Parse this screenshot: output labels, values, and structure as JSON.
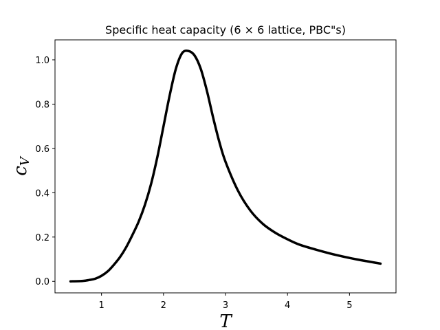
{
  "chart_data": {
    "type": "line",
    "title": "Specific heat capacity (6 × 6 lattice, PBC\"s)",
    "xlabel": "T",
    "ylabel": "c",
    "ylabel_subscript": "V",
    "xlim": [
      0.25,
      5.75
    ],
    "ylim": [
      -0.052,
      1.09
    ],
    "xticks": [
      1,
      2,
      3,
      4,
      5
    ],
    "yticks": [
      0.0,
      0.2,
      0.4,
      0.6,
      0.8,
      1.0
    ],
    "grid": false,
    "legend": "none",
    "series": [
      {
        "color": "#000000",
        "x": [
          0.5,
          0.7,
          0.8,
          0.9,
          1.0,
          1.1,
          1.2,
          1.3,
          1.4,
          1.5,
          1.6,
          1.7,
          1.8,
          1.9,
          2.0,
          2.1,
          2.2,
          2.3,
          2.4,
          2.5,
          2.6,
          2.7,
          2.8,
          2.9,
          3.0,
          3.2,
          3.4,
          3.6,
          3.8,
          4.0,
          4.2,
          4.5,
          4.8,
          5.1,
          5.5
        ],
        "y": [
          0.0,
          0.002,
          0.006,
          0.012,
          0.025,
          0.045,
          0.075,
          0.11,
          0.155,
          0.21,
          0.27,
          0.345,
          0.44,
          0.56,
          0.7,
          0.84,
          0.96,
          1.03,
          1.04,
          1.02,
          0.96,
          0.86,
          0.74,
          0.63,
          0.54,
          0.41,
          0.32,
          0.26,
          0.22,
          0.19,
          0.165,
          0.14,
          0.118,
          0.1,
          0.08
        ]
      }
    ]
  }
}
